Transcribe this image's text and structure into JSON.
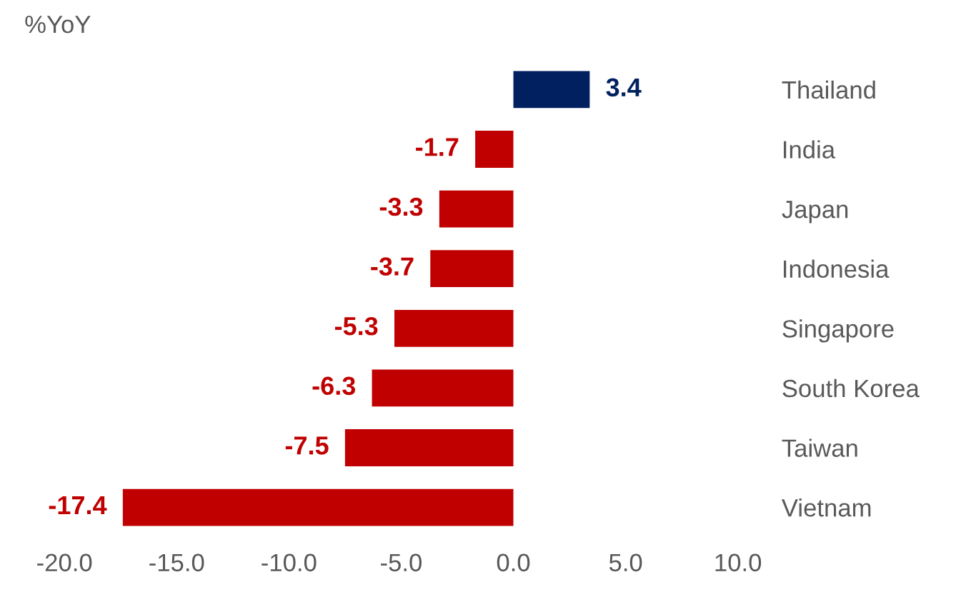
{
  "chart_data": {
    "type": "bar",
    "orientation": "horizontal",
    "xlabel": "%YoY",
    "categories": [
      "Thailand",
      "India",
      "Japan",
      "Indonesia",
      "Singapore",
      "South Korea",
      "Taiwan",
      "Vietnam"
    ],
    "values": [
      3.4,
      -1.7,
      -3.3,
      -3.7,
      -5.3,
      -6.3,
      -7.5,
      -17.4
    ],
    "colors": [
      "#002060",
      "#c00000",
      "#c00000",
      "#c00000",
      "#c00000",
      "#c00000",
      "#c00000",
      "#c00000"
    ],
    "data_labels": true,
    "xlim": [
      -20,
      10
    ],
    "xticks": [
      {
        "value": -20,
        "label": "-20.0"
      },
      {
        "value": -15,
        "label": "-15.0"
      },
      {
        "value": -10,
        "label": "-10.0"
      },
      {
        "value": -5,
        "label": "-5.0"
      },
      {
        "value": 0,
        "label": "0.0"
      },
      {
        "value": 5,
        "label": "5.0"
      },
      {
        "value": 10,
        "label": "10.0"
      }
    ],
    "grid": false
  }
}
